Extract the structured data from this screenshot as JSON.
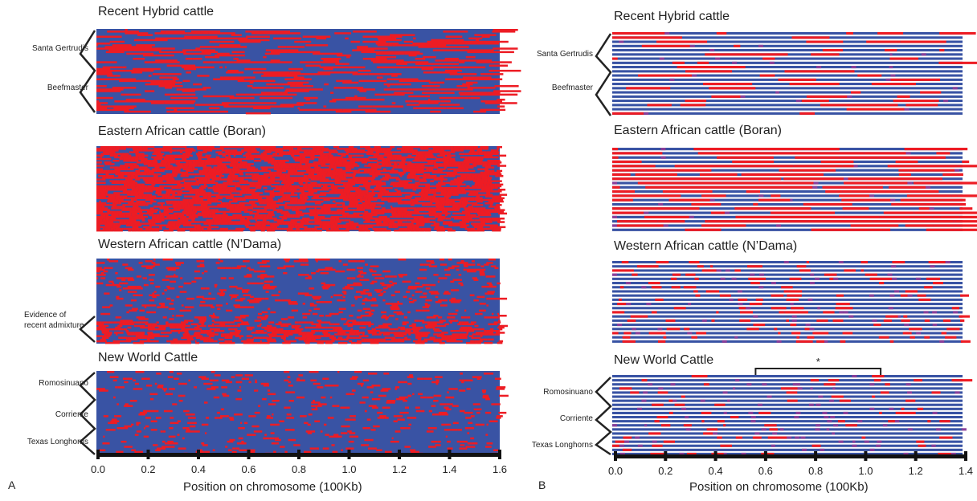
{
  "figure": {
    "panel_a_label": "A",
    "panel_b_label": "B"
  },
  "colors": {
    "blue": "#3953a4",
    "red": "#ed1c24",
    "purple": "#8a3f99",
    "white": "#ffffff"
  },
  "chart_data": [
    {
      "type": "heatmap",
      "panel": "A",
      "xlabel": "Position on chromosome (100Kb)",
      "xticks": [
        "0.0",
        "0.2",
        "0.4",
        "0.6",
        "0.8",
        "1.0",
        "1.2",
        "1.4",
        "1.6"
      ],
      "xlim": [
        0,
        1.6
      ],
      "heatmaps": [
        {
          "title": "Recent Hybrid cattle",
          "red_fraction": 0.35,
          "groups": [
            {
              "label": "Santa Gertrudis"
            },
            {
              "label": "Beefmaster"
            }
          ]
        },
        {
          "title": "Eastern African cattle (Boran)",
          "red_fraction": 0.72,
          "groups": []
        },
        {
          "title": "Western African cattle (N’Dama)",
          "red_fraction": 0.2,
          "groups": [
            {
              "label": "Evidence of recent admixture"
            }
          ]
        },
        {
          "title": "New World Cattle",
          "red_fraction": 0.12,
          "groups": [
            {
              "label": "Romosinuano"
            },
            {
              "label": "Corriente"
            },
            {
              "label": "Texas Longhorns"
            }
          ]
        }
      ]
    },
    {
      "type": "heatmap",
      "panel": "B",
      "xlabel": "Position on chromosome (100Kb)",
      "xticks": [
        "0.0",
        "0.2",
        "0.4",
        "0.6",
        "0.8",
        "1.0",
        "1.2",
        "1.4"
      ],
      "xlim": [
        0,
        1.4
      ],
      "heatmaps": [
        {
          "title": "Recent Hybrid cattle",
          "red_fraction": 0.3,
          "groups": [
            {
              "label": "Santa Gertrudis"
            },
            {
              "label": "Beefmaster"
            }
          ]
        },
        {
          "title": "Eastern African cattle (Boran)",
          "red_fraction": 0.7,
          "groups": []
        },
        {
          "title": "Western African cattle (N’Dama)",
          "red_fraction": 0.15,
          "groups": []
        },
        {
          "title": "New World Cattle",
          "red_fraction": 0.1,
          "groups": [
            {
              "label": "Romosinuano"
            },
            {
              "label": "Corriente"
            },
            {
              "label": "Texas Longhorns"
            }
          ],
          "annotation": {
            "text": "*",
            "x_start": 0.56,
            "x_end": 1.06
          }
        }
      ]
    }
  ]
}
